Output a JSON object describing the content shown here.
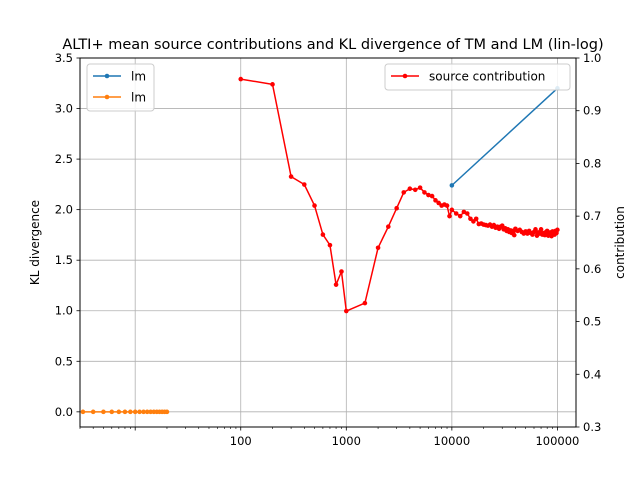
{
  "chart_data": {
    "type": "line",
    "title": "ALTI+ mean source contributions and KL divergence of TM and LM (lin-log)",
    "xscale": "log",
    "xlim": [
      3,
      150000
    ],
    "x_tick_labels": [
      "100",
      "1000",
      "10000",
      "100000"
    ],
    "left_axis": {
      "label": "KL divergence",
      "ylim": [
        -0.15,
        3.5
      ],
      "ticks": [
        0.0,
        0.5,
        1.0,
        1.5,
        2.0,
        2.5,
        3.0,
        3.5
      ],
      "tick_labels": [
        "0.0",
        "0.5",
        "1.0",
        "1.5",
        "2.0",
        "2.5",
        "3.0",
        "3.5"
      ]
    },
    "right_axis": {
      "label": "contribution",
      "ylim": [
        0.3,
        1.0
      ],
      "ticks": [
        0.3,
        0.4,
        0.5,
        0.6,
        0.7,
        0.8,
        0.9,
        1.0
      ],
      "tick_labels": [
        "0.3",
        "0.4",
        "0.5",
        "0.6",
        "0.7",
        "0.8",
        "0.9",
        "1.0"
      ]
    },
    "grid": true,
    "legend_left": {
      "placement": "top-left",
      "entries": [
        "lm",
        "lm"
      ]
    },
    "legend_right": {
      "placement": "top-right",
      "entries": [
        "source contribution"
      ]
    },
    "series": [
      {
        "name": "lm",
        "axis": "left",
        "color": "#1f77b4",
        "x": [
          10000,
          100000
        ],
        "y": [
          2.24,
          3.2
        ]
      },
      {
        "name": "lm",
        "axis": "left",
        "color": "#ff7f0e",
        "x": [
          3.2,
          4,
          5,
          6,
          7,
          8,
          9,
          10,
          11,
          12,
          13,
          14,
          15,
          16,
          17,
          18,
          19,
          20
        ],
        "y": [
          0,
          0,
          0,
          0,
          0,
          0,
          0,
          0,
          0,
          0,
          0,
          0,
          0,
          0,
          0,
          0,
          0,
          0
        ]
      },
      {
        "name": "source contribution",
        "axis": "right",
        "color": "#ff0000",
        "x": [
          100,
          200,
          300,
          400,
          500,
          600,
          700,
          800,
          900,
          1000,
          1500,
          2000,
          2500,
          3000,
          3500,
          4000,
          4500,
          5000,
          5500,
          6000,
          6500,
          7000,
          7500,
          8000,
          8500,
          9000,
          9500,
          10000,
          11000,
          12000,
          13000,
          14000,
          15000,
          16000,
          17000,
          18000,
          19000,
          20000,
          21000,
          22000,
          23000,
          24000,
          25000,
          26000,
          27000,
          28000,
          29000,
          30000,
          31000,
          32000,
          33000,
          34000,
          35000,
          36000,
          37000,
          38000,
          39000,
          40000,
          42000,
          44000,
          46000,
          48000,
          50000,
          52000,
          54000,
          56000,
          58000,
          60000,
          62000,
          64000,
          66000,
          68000,
          70000,
          72000,
          74000,
          76000,
          78000,
          80000,
          82000,
          84000,
          86000,
          88000,
          90000,
          92000,
          94000,
          96000,
          98000,
          100000
        ],
        "y": [
          0.96,
          0.95,
          0.775,
          0.76,
          0.72,
          0.665,
          0.645,
          0.57,
          0.595,
          0.52,
          0.535,
          0.64,
          0.68,
          0.715,
          0.745,
          0.752,
          0.75,
          0.754,
          0.745,
          0.74,
          0.738,
          0.73,
          0.725,
          0.72,
          0.722,
          0.72,
          0.7,
          0.712,
          0.705,
          0.7,
          0.708,
          0.705,
          0.695,
          0.69,
          0.695,
          0.685,
          0.686,
          0.684,
          0.683,
          0.682,
          0.684,
          0.68,
          0.683,
          0.678,
          0.68,
          0.676,
          0.68,
          0.682,
          0.675,
          0.677,
          0.672,
          0.675,
          0.67,
          0.673,
          0.668,
          0.672,
          0.664,
          0.676,
          0.672,
          0.674,
          0.67,
          0.667,
          0.671,
          0.667,
          0.672,
          0.668,
          0.665,
          0.67,
          0.675,
          0.663,
          0.669,
          0.667,
          0.675,
          0.665,
          0.668,
          0.664,
          0.67,
          0.672,
          0.663,
          0.666,
          0.669,
          0.662,
          0.671,
          0.667,
          0.665,
          0.672,
          0.668,
          0.674
        ]
      }
    ]
  }
}
